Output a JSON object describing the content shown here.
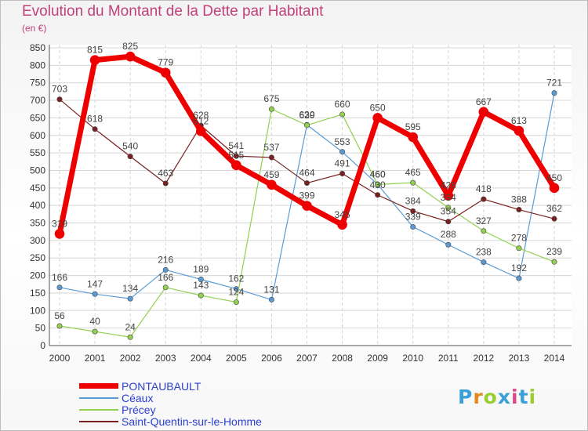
{
  "title": "Evolution du Montant de la Dette par Habitant",
  "unit": "(en €)",
  "logo": {
    "text": "Proxiti",
    "letters": [
      "P",
      "r",
      "o",
      "x",
      "i",
      "t",
      "i"
    ]
  },
  "colors": {
    "title": "#c2417a",
    "pontaubault": "#ee0000",
    "ceaux": "#5b9bd5",
    "precey": "#92d050",
    "saint_quentin": "#7a2020",
    "legend_text": "#2b3fd0",
    "logo": [
      "#3aa0d8",
      "#e48a1a",
      "#9acd32",
      "#3aa0d8",
      "#d94b8a",
      "#3aa0d8",
      "#9acd32"
    ]
  },
  "chart_data": {
    "type": "line",
    "title": "Evolution du Montant de la Dette par Habitant",
    "ylabel": "(en €)",
    "categories": [
      "2000",
      "2001",
      "2002",
      "2003",
      "2004",
      "2005",
      "2006",
      "2007",
      "2008",
      "2009",
      "2010",
      "2011",
      "2012",
      "2013",
      "2014"
    ],
    "ylim": [
      0,
      850
    ],
    "yticks": [
      0,
      50,
      100,
      150,
      200,
      250,
      300,
      350,
      400,
      450,
      500,
      550,
      600,
      650,
      700,
      750,
      800,
      850
    ],
    "grid": true,
    "legend_position": "bottom-left",
    "series": [
      {
        "name": "PONTAUBAULT",
        "color": "#ee0000",
        "width": 7,
        "values": [
          319,
          815,
          825,
          779,
          612,
          515,
          459,
          399,
          345,
          650,
          595,
          428,
          667,
          613,
          450
        ]
      },
      {
        "name": "Céaux",
        "color": "#5b9bd5",
        "width": 1.2,
        "values": [
          166,
          147,
          134,
          216,
          189,
          162,
          131,
          630,
          553,
          460,
          339,
          288,
          238,
          192,
          721
        ]
      },
      {
        "name": "Précey",
        "color": "#92d050",
        "width": 1.2,
        "values": [
          56,
          40,
          24,
          166,
          143,
          124,
          675,
          629,
          660,
          460,
          465,
          394,
          327,
          278,
          239
        ]
      },
      {
        "name": "Saint-Quentin-sur-le-Homme",
        "color": "#7a2020",
        "width": 1.2,
        "values": [
          703,
          618,
          540,
          463,
          628,
          541,
          537,
          464,
          491,
          430,
          384,
          354,
          418,
          388,
          362
        ]
      }
    ]
  }
}
